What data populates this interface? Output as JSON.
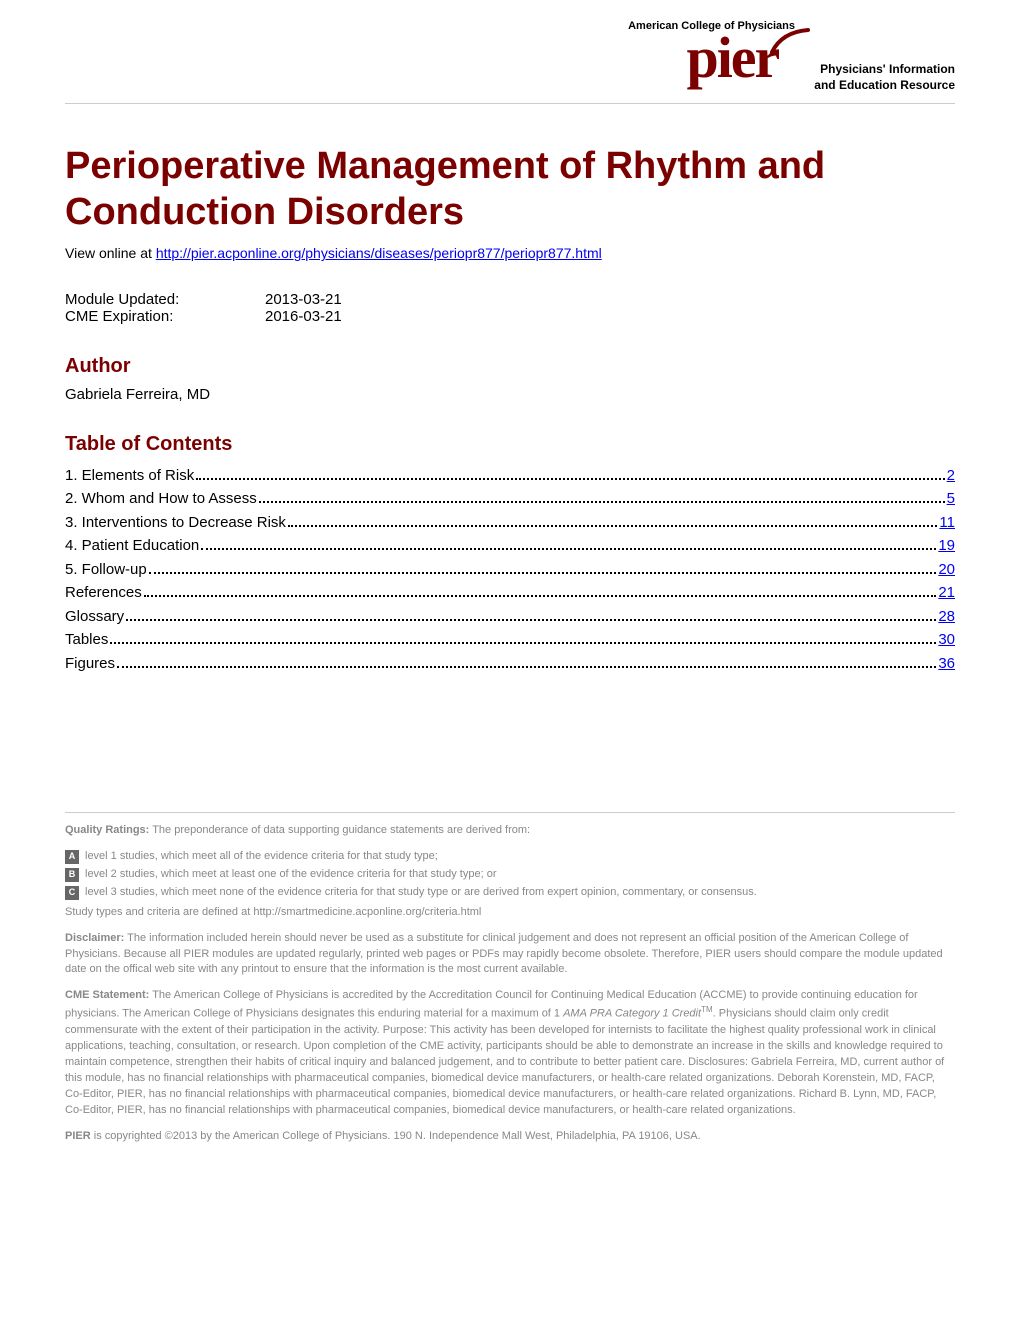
{
  "logo": {
    "org": "American College of Physicians",
    "brand": "pier",
    "tagline1": "Physicians' Information",
    "tagline2": "and Education Resource",
    "brand_color": "#7b0000"
  },
  "title": "Perioperative Management of Rhythm and Conduction Disorders",
  "view_online": {
    "prefix": "View online at ",
    "url": "http://pier.acponline.org/physicians/diseases/periopr877/periopr877.html"
  },
  "meta": {
    "updated_label": "Module Updated:",
    "updated_value": "2013-03-21",
    "expiration_label": "CME Expiration:",
    "expiration_value": "2016-03-21"
  },
  "author_heading": "Author",
  "author_name": "Gabriela Ferreira, MD",
  "toc_heading": "Table of Contents",
  "toc": [
    {
      "label": "1. Elements of Risk",
      "page": "2"
    },
    {
      "label": "2. Whom and How to Assess",
      "page": "5"
    },
    {
      "label": "3. Interventions to Decrease Risk",
      "page": "11"
    },
    {
      "label": "4. Patient Education ",
      "page": "19"
    },
    {
      "label": "5. Follow-up ",
      "page": "20"
    },
    {
      "label": "References ",
      "page": "21"
    },
    {
      "label": "Glossary",
      "page": "28"
    },
    {
      "label": "Tables",
      "page": "30"
    },
    {
      "label": "Figures ",
      "page": "36"
    }
  ],
  "footer": {
    "quality_heading": "Quality Ratings:",
    "quality_intro": " The preponderance of data supporting guidance statements are derived from:",
    "levels": [
      {
        "badge": "A",
        "text": "level 1 studies, which meet all of the evidence criteria for that study type;"
      },
      {
        "badge": "B",
        "text": "level 2 studies, which meet at least one of the evidence criteria for that study type; or"
      },
      {
        "badge": "C",
        "text": "level 3 studies, which meet none of the evidence criteria for that study type or are derived from expert opinion, commentary, or consensus."
      }
    ],
    "criteria_text": "Study types and criteria are defined at http://smartmedicine.acponline.org/criteria.html",
    "disclaimer_heading": "Disclaimer:",
    "disclaimer_text": " The information included herein should never be used as a substitute for clinical judgement and does not represent an official position of the American College of Physicians. Because all PIER modules are updated regularly, printed web pages or PDFs may rapidly become obsolete. Therefore, PIER users should compare the module updated date on the offical web site with any printout to ensure that the information is the most current available.",
    "cme_heading": "CME Statement:",
    "cme_text_1": " The American College of Physicians is accredited by the Accreditation Council for Continuing Medical Education (ACCME) to provide continuing education for physicians. The American College of Physicians designates this enduring material for a maximum of 1 ",
    "cme_credit": "AMA PRA Category 1 Credit",
    "cme_tm": "TM",
    "cme_text_2": ". Physicians should claim only credit commensurate with the extent of their participation in the activity. Purpose: This activity has been developed for internists to facilitate the highest quality professional work in clinical applications, teaching, consultation, or research. Upon completion of the CME activity, participants should be able to demonstrate an increase in the skills and knowledge required to maintain competence, strengthen their habits of critical inquiry and balanced judgement, and to contribute to better patient care. Disclosures: Gabriela Ferreira, MD, current author of this module, has no financial relationships with pharmaceutical companies, biomedical device manufacturers, or health-care related organizations. Deborah Korenstein, MD, FACP, Co-Editor, PIER, has no financial relationships with pharmaceutical companies, biomedical device manufacturers, or health-care related organizations. Richard B. Lynn, MD, FACP, Co-Editor, PIER, has no financial relationships with pharmaceutical companies, biomedical device manufacturers, or health-care related organizations.",
    "copyright_heading": "PIER",
    "copyright_text": " is copyrighted ©2013 by the American College of Physicians. 190 N. Independence Mall West, Philadelphia, PA 19106, USA."
  }
}
